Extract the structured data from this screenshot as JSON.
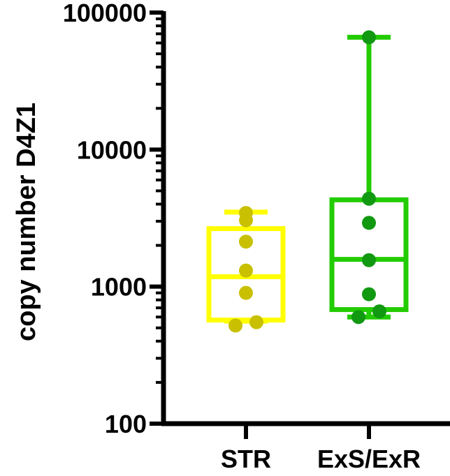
{
  "chart_data": {
    "type": "box",
    "ylabel": "copy number D4Z1",
    "yscale": "log",
    "ylim": [
      100,
      100000
    ],
    "yticks": [
      "100",
      "1000",
      "10000",
      "100000"
    ],
    "categories": [
      "STR",
      "ExS/ExR"
    ],
    "series": [
      {
        "category": "STR",
        "box_color": "#ffff00",
        "point_color": "#c8c000",
        "whisker_low": 560,
        "q1": 570,
        "median": 1180,
        "q3": 2650,
        "whisker_high": 3500,
        "points": [
          3450,
          3050,
          2130,
          1310,
          900,
          550,
          520
        ]
      },
      {
        "category": "ExS/ExR",
        "box_color": "#22cc00",
        "point_color": "#119911",
        "whisker_low": 600,
        "q1": 680,
        "median": 1580,
        "q3": 4300,
        "whisker_high": 66000,
        "points": [
          66000,
          4380,
          2920,
          1560,
          880,
          660,
          600
        ]
      }
    ]
  }
}
